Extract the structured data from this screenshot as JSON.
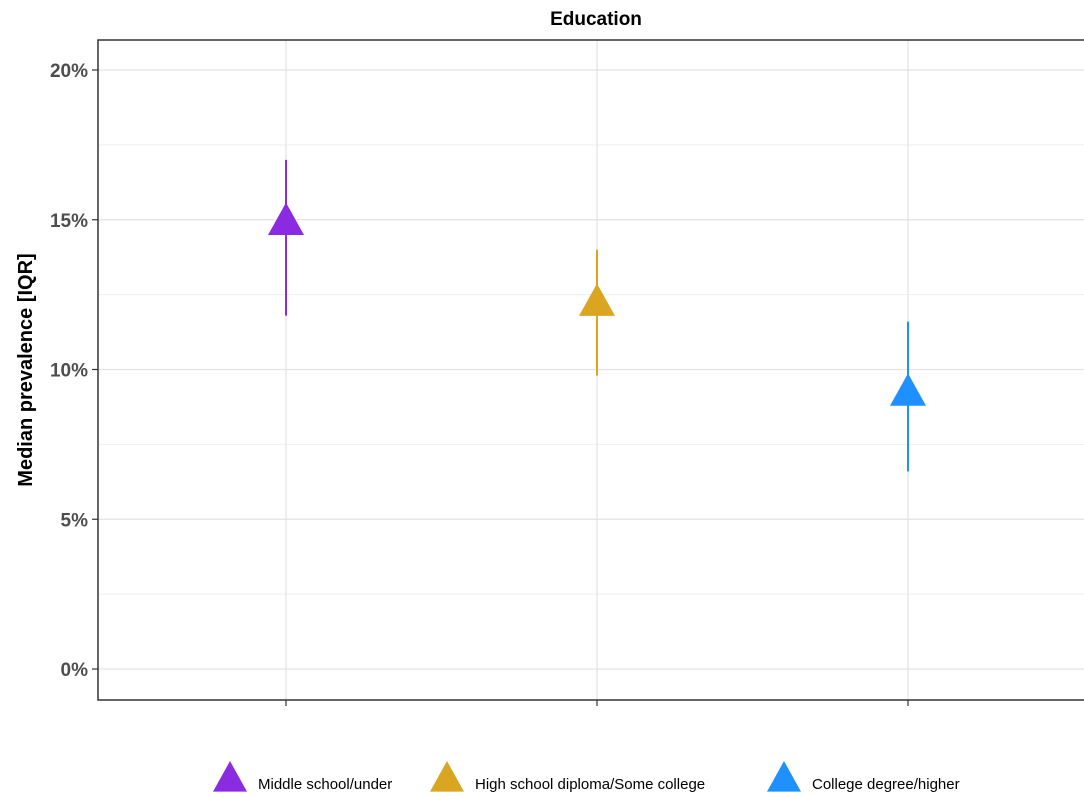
{
  "chart_data": {
    "type": "scatter",
    "title": "Education",
    "ylabel": "Median prevalence [IQR]",
    "xlabel": "",
    "ylim": [
      0,
      21
    ],
    "y_ticks": [
      0,
      5,
      10,
      15,
      20
    ],
    "y_tick_labels": [
      "0%",
      "5%",
      "10%",
      "15%",
      "20%"
    ],
    "grid": true,
    "legend_position": "bottom",
    "marker": "triangle",
    "categories": [
      "Middle school/under",
      "High school diploma/Some college",
      "College degree/higher"
    ],
    "series": [
      {
        "name": "Middle school/under",
        "median": 14.9,
        "q1": 11.8,
        "q3": 17.0,
        "color": "#8A2BE2"
      },
      {
        "name": "High school diploma/Some college",
        "median": 12.2,
        "q1": 9.8,
        "q3": 14.0,
        "color": "#DAA520"
      },
      {
        "name": "College degree/higher",
        "median": 9.2,
        "q1": 6.6,
        "q3": 11.6,
        "color": "#1E90FF"
      }
    ]
  }
}
